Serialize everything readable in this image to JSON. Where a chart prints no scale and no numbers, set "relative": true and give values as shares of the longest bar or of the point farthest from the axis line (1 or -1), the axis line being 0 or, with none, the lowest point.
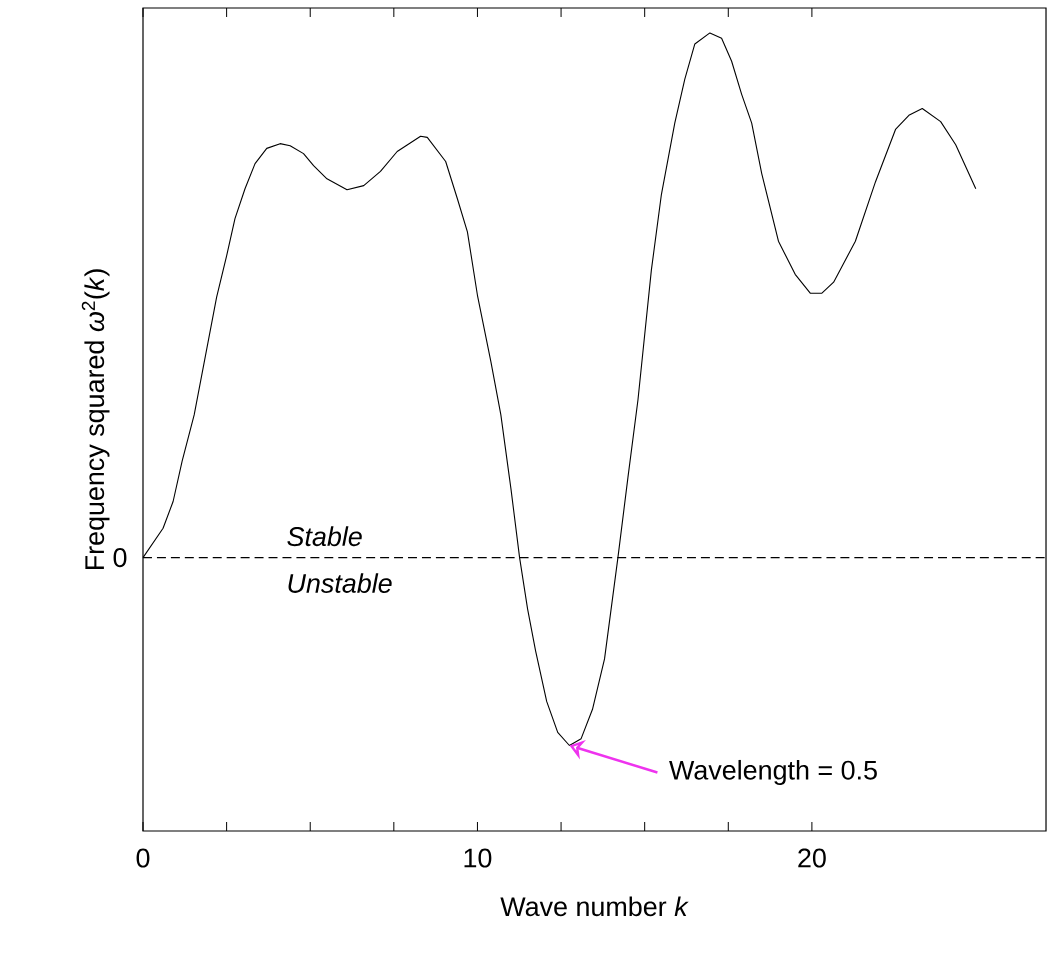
{
  "chart_data": {
    "type": "line",
    "relative": true,
    "xlabel": "Wave number *k*",
    "ylabel": "Frequency squared *ω*$^{2}$(*k*)",
    "xlim": [
      0,
      27
    ],
    "xticks": [
      0,
      10,
      20
    ],
    "x": [
      0,
      0.6,
      0.9,
      1.17,
      1.53,
      2.2,
      2.5,
      2.75,
      3.05,
      3.35,
      3.7,
      4.1,
      4.4,
      4.8,
      5.1,
      5.5,
      6.1,
      6.6,
      7.1,
      7.6,
      8.3,
      8.5,
      9.05,
      9.4,
      9.7,
      10.0,
      10.4,
      10.7,
      11.0,
      11.26,
      11.5,
      11.74,
      12.07,
      12.4,
      12.75,
      13.1,
      13.44,
      13.8,
      14.2,
      14.5,
      14.8,
      15.2,
      15.5,
      15.9,
      16.2,
      16.5,
      16.95,
      17.3,
      17.6,
      17.9,
      18.2,
      18.5,
      19.0,
      19.5,
      19.95,
      20.3,
      20.65,
      21.3,
      21.9,
      22.5,
      22.9,
      23.3,
      23.85,
      24.3,
      24.9
    ],
    "series": [
      {
        "color": "#000000",
        "values": [
          0,
          0.056,
          0.107,
          0.184,
          0.272,
          0.496,
          0.575,
          0.646,
          0.703,
          0.751,
          0.78,
          0.789,
          0.785,
          0.77,
          0.747,
          0.722,
          0.701,
          0.709,
          0.736,
          0.774,
          0.803,
          0.801,
          0.755,
          0.684,
          0.621,
          0.5,
          0.374,
          0.272,
          0.132,
          0,
          -0.098,
          -0.178,
          -0.274,
          -0.333,
          -0.358,
          -0.345,
          -0.289,
          -0.193,
          0,
          0.153,
          0.301,
          0.548,
          0.692,
          0.828,
          0.912,
          0.979,
          1.0,
          0.99,
          0.946,
          0.883,
          0.828,
          0.732,
          0.603,
          0.54,
          0.504,
          0.504,
          0.525,
          0.603,
          0.716,
          0.816,
          0.843,
          0.856,
          0.831,
          0.787,
          0.703
        ]
      }
    ],
    "ref_lines": [
      {
        "axis": "y",
        "value": 0,
        "label": "0",
        "line_style": "dashed"
      }
    ],
    "annotations": [
      "Stable",
      "Unstable",
      {
        "text": "Wavelength = 0.5",
        "x": 12.75,
        "y": -0.358
      }
    ],
    "grid": false,
    "marker": "none",
    "line_style": "solid"
  }
}
